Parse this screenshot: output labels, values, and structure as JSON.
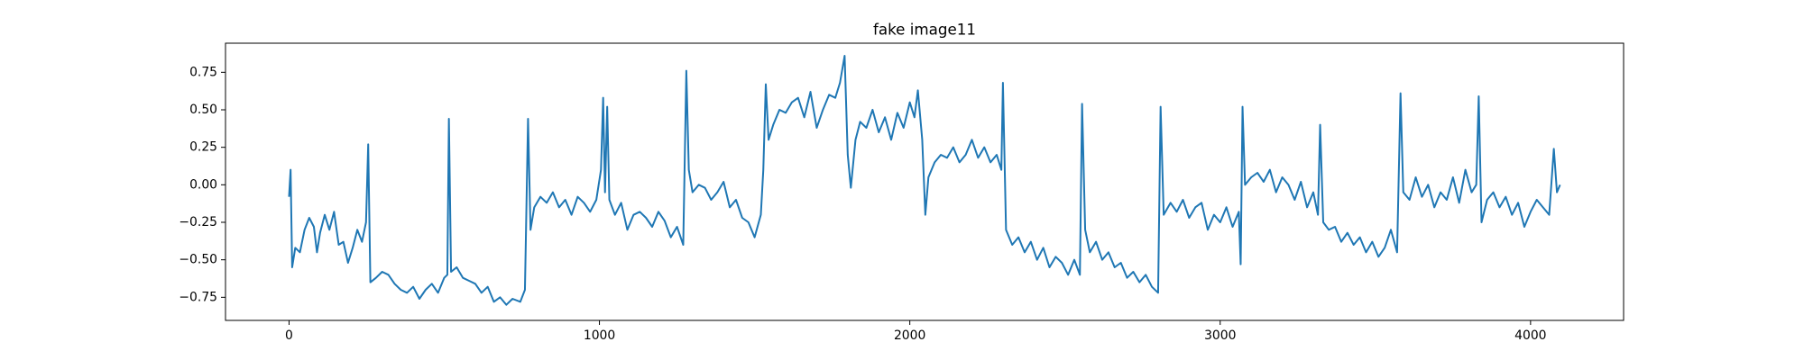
{
  "chart_data": {
    "type": "line",
    "title": "fake image11",
    "x": [
      0,
      5,
      10,
      20,
      35,
      50,
      65,
      80,
      90,
      100,
      115,
      130,
      145,
      160,
      175,
      190,
      205,
      220,
      235,
      248,
      255,
      262,
      280,
      300,
      320,
      340,
      360,
      380,
      400,
      420,
      440,
      460,
      480,
      500,
      510,
      515,
      522,
      540,
      560,
      580,
      600,
      620,
      640,
      660,
      680,
      700,
      720,
      745,
      760,
      770,
      778,
      790,
      810,
      830,
      850,
      870,
      890,
      910,
      930,
      950,
      970,
      990,
      1005,
      1012,
      1018,
      1025,
      1032,
      1050,
      1070,
      1090,
      1110,
      1130,
      1150,
      1170,
      1190,
      1210,
      1230,
      1250,
      1270,
      1280,
      1288,
      1300,
      1320,
      1340,
      1360,
      1380,
      1400,
      1420,
      1440,
      1460,
      1480,
      1500,
      1520,
      1528,
      1536,
      1545,
      1560,
      1580,
      1600,
      1620,
      1640,
      1660,
      1680,
      1700,
      1720,
      1740,
      1760,
      1775,
      1790,
      1800,
      1810,
      1825,
      1840,
      1860,
      1880,
      1900,
      1920,
      1940,
      1960,
      1980,
      2000,
      2015,
      2026,
      2040,
      2050,
      2060,
      2080,
      2100,
      2120,
      2140,
      2160,
      2180,
      2200,
      2220,
      2240,
      2260,
      2280,
      2295,
      2300,
      2310,
      2330,
      2350,
      2370,
      2390,
      2410,
      2430,
      2450,
      2470,
      2490,
      2510,
      2530,
      2548,
      2555,
      2565,
      2580,
      2600,
      2620,
      2640,
      2660,
      2680,
      2700,
      2720,
      2740,
      2760,
      2780,
      2800,
      2808,
      2818,
      2840,
      2860,
      2880,
      2900,
      2920,
      2940,
      2960,
      2980,
      3000,
      3020,
      3040,
      3060,
      3066,
      3072,
      3080,
      3100,
      3120,
      3140,
      3160,
      3180,
      3200,
      3220,
      3240,
      3260,
      3280,
      3300,
      3315,
      3322,
      3332,
      3350,
      3370,
      3390,
      3410,
      3430,
      3450,
      3470,
      3490,
      3510,
      3530,
      3550,
      3570,
      3581,
      3590,
      3610,
      3630,
      3650,
      3670,
      3690,
      3710,
      3730,
      3750,
      3770,
      3790,
      3810,
      3825,
      3833,
      3842,
      3860,
      3880,
      3900,
      3920,
      3940,
      3960,
      3980,
      4000,
      4020,
      4040,
      4060,
      4075,
      4085,
      4095
    ],
    "series": [
      {
        "color": "#1f77b4",
        "values": [
          -0.08,
          0.1,
          -0.55,
          -0.42,
          -0.45,
          -0.3,
          -0.22,
          -0.28,
          -0.45,
          -0.32,
          -0.2,
          -0.3,
          -0.18,
          -0.4,
          -0.38,
          -0.52,
          -0.42,
          -0.3,
          -0.38,
          -0.25,
          0.27,
          -0.65,
          -0.62,
          -0.58,
          -0.6,
          -0.66,
          -0.7,
          -0.72,
          -0.68,
          -0.76,
          -0.7,
          -0.66,
          -0.72,
          -0.62,
          -0.6,
          0.44,
          -0.58,
          -0.55,
          -0.62,
          -0.64,
          -0.66,
          -0.72,
          -0.68,
          -0.78,
          -0.75,
          -0.8,
          -0.76,
          -0.78,
          -0.7,
          0.44,
          -0.3,
          -0.15,
          -0.08,
          -0.12,
          -0.05,
          -0.15,
          -0.1,
          -0.2,
          -0.08,
          -0.12,
          -0.18,
          -0.1,
          0.1,
          0.58,
          -0.05,
          0.52,
          -0.1,
          -0.2,
          -0.12,
          -0.3,
          -0.2,
          -0.18,
          -0.22,
          -0.28,
          -0.18,
          -0.24,
          -0.35,
          -0.28,
          -0.4,
          0.76,
          0.1,
          -0.05,
          0.0,
          -0.02,
          -0.1,
          -0.05,
          0.02,
          -0.15,
          -0.1,
          -0.22,
          -0.25,
          -0.35,
          -0.2,
          0.1,
          0.67,
          0.3,
          0.4,
          0.5,
          0.48,
          0.55,
          0.58,
          0.45,
          0.62,
          0.38,
          0.5,
          0.6,
          0.58,
          0.68,
          0.86,
          0.2,
          -0.02,
          0.3,
          0.42,
          0.38,
          0.5,
          0.35,
          0.45,
          0.3,
          0.48,
          0.38,
          0.55,
          0.45,
          0.63,
          0.3,
          -0.2,
          0.05,
          0.15,
          0.2,
          0.18,
          0.25,
          0.15,
          0.2,
          0.3,
          0.18,
          0.25,
          0.15,
          0.2,
          0.1,
          0.68,
          -0.3,
          -0.4,
          -0.35,
          -0.45,
          -0.38,
          -0.5,
          -0.42,
          -0.55,
          -0.48,
          -0.52,
          -0.6,
          -0.5,
          -0.6,
          0.54,
          -0.3,
          -0.45,
          -0.38,
          -0.5,
          -0.45,
          -0.55,
          -0.52,
          -0.62,
          -0.58,
          -0.65,
          -0.6,
          -0.68,
          -0.72,
          0.52,
          -0.2,
          -0.12,
          -0.18,
          -0.1,
          -0.22,
          -0.15,
          -0.12,
          -0.3,
          -0.2,
          -0.25,
          -0.15,
          -0.28,
          -0.18,
          -0.53,
          0.52,
          0.0,
          0.05,
          0.08,
          0.02,
          0.1,
          -0.05,
          0.05,
          0.0,
          -0.1,
          0.02,
          -0.15,
          -0.05,
          -0.2,
          0.4,
          -0.25,
          -0.3,
          -0.28,
          -0.38,
          -0.32,
          -0.4,
          -0.35,
          -0.45,
          -0.38,
          -0.48,
          -0.42,
          -0.3,
          -0.45,
          0.61,
          -0.05,
          -0.1,
          0.05,
          -0.08,
          0.0,
          -0.15,
          -0.05,
          -0.1,
          0.05,
          -0.12,
          0.1,
          -0.05,
          0.0,
          0.59,
          -0.25,
          -0.1,
          -0.05,
          -0.15,
          -0.08,
          -0.2,
          -0.12,
          -0.28,
          -0.18,
          -0.1,
          -0.15,
          -0.2,
          0.24,
          -0.05,
          0.0
        ]
      }
    ],
    "xlim": [
      -204.75,
      4299.75
    ],
    "xticks": [
      0,
      1000,
      2000,
      3000,
      4000
    ],
    "ylim": [
      -0.904,
      0.944
    ],
    "yticks": [
      {
        "value": -0.75,
        "label": "−0.75"
      },
      {
        "value": -0.5,
        "label": "−0.50"
      },
      {
        "value": -0.25,
        "label": "−0.25"
      },
      {
        "value": 0,
        "label": "0.00"
      },
      0.25,
      {
        "value": 0.5,
        "label": "0.50"
      },
      0.75
    ]
  }
}
